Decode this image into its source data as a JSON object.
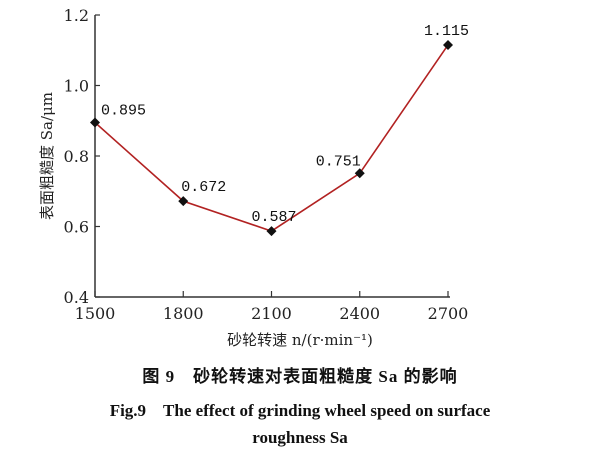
{
  "chart_data": {
    "type": "line",
    "x": [
      1500,
      1800,
      2100,
      2400,
      2700
    ],
    "series": [
      {
        "name": "Sa",
        "values": [
          0.895,
          0.672,
          0.587,
          0.751,
          1.115
        ],
        "color": "#b22222"
      }
    ],
    "data_labels": [
      "0.895",
      "0.672",
      "0.587",
      "0.751",
      "1.115"
    ],
    "xticks": [
      "1500",
      "1800",
      "2100",
      "2400",
      "2700"
    ],
    "yticks": [
      "0.4",
      "0.6",
      "0.8",
      "1.0",
      "1.2"
    ],
    "xlim": [
      1500,
      2700
    ],
    "ylim": [
      0.4,
      1.2
    ],
    "xlabel": "砂轮转速 n/(r·min⁻¹)",
    "ylabel": "表面粗糙度 Sa/μm",
    "grid": false,
    "marker": "diamond"
  },
  "caption": {
    "cn": "图 9　砂轮转速对表面粗糙度 Sa 的影响",
    "en_line1": "Fig.9　The effect of grinding wheel speed on surface",
    "en_line2": "roughness Sa"
  }
}
